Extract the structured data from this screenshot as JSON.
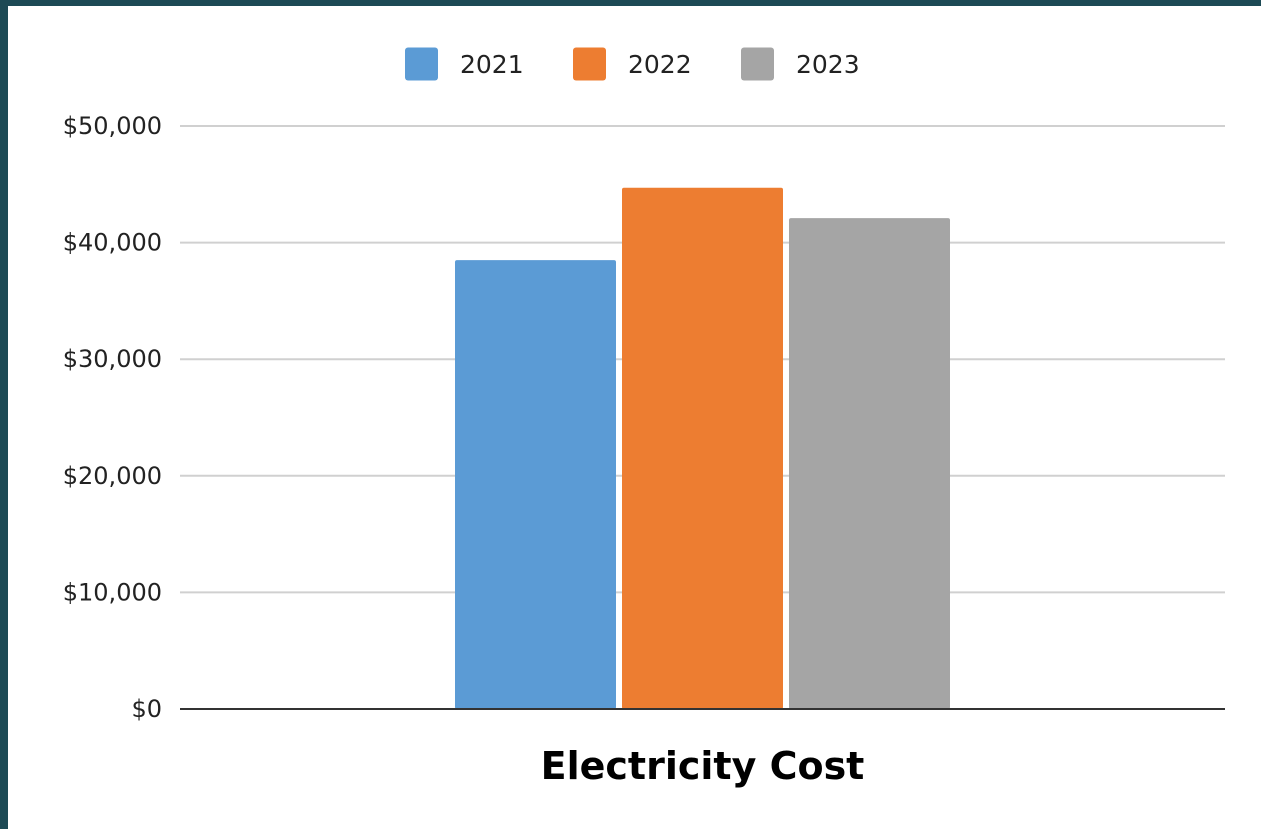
{
  "chart_data": {
    "type": "bar",
    "title": "",
    "xlabel": "",
    "ylabel": "",
    "categories": [
      "Electricity Cost"
    ],
    "series": [
      {
        "name": "2021",
        "values": [
          38500
        ],
        "color": "#5b9bd5"
      },
      {
        "name": "2022",
        "values": [
          44700
        ],
        "color": "#ed7d31"
      },
      {
        "name": "2023",
        "values": [
          42100
        ],
        "color": "#a5a5a5"
      }
    ],
    "ylim": [
      0,
      50000
    ],
    "yticks": [
      0,
      10000,
      20000,
      30000,
      40000,
      50000
    ],
    "ytick_labels": [
      "$0",
      "$10,000",
      "$20,000",
      "$30,000",
      "$40,000",
      "$50,000"
    ],
    "grid": true,
    "legend_position": "top-center"
  },
  "colors": {
    "frame_background": "#1d4a55",
    "plot_background": "#ffffff",
    "gridline": "#d0d0d0",
    "axis_line": "#333333"
  }
}
